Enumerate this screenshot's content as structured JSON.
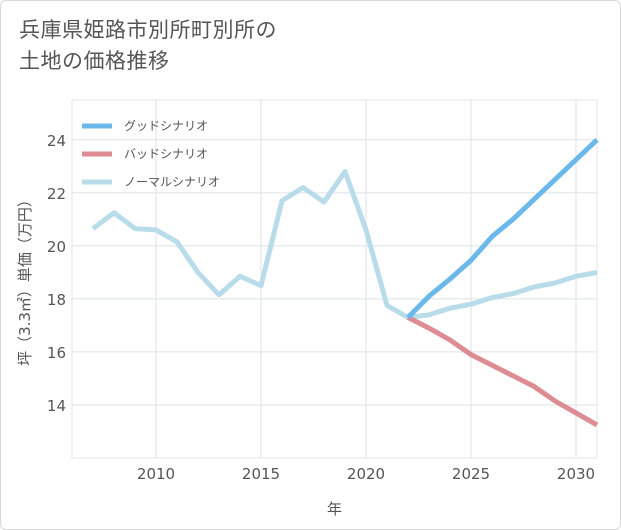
{
  "header": {
    "title_line1": "兵庫県姫路市別所町別所の",
    "title_line2": "土地の価格推移"
  },
  "chart_data": {
    "type": "line",
    "xlabel": "年",
    "ylabel": "坪（3.3㎡）単価（万円）",
    "xlim": [
      2006,
      2031
    ],
    "ylim": [
      12,
      25.5
    ],
    "xticks": [
      2010,
      2015,
      2020,
      2025,
      2030
    ],
    "yticks": [
      14,
      16,
      18,
      20,
      22,
      24
    ],
    "grid": true,
    "legend_position": "top-left",
    "series": [
      {
        "name": "グッドシナリオ",
        "color": "#6bb8ea",
        "x": [
          2022,
          2023,
          2024,
          2025,
          2026,
          2027,
          2028,
          2029,
          2030,
          2031
        ],
        "values": [
          17.3,
          18.1,
          18.75,
          19.45,
          20.35,
          21.0,
          21.75,
          22.5,
          23.25,
          24.0
        ]
      },
      {
        "name": "バッドシナリオ",
        "color": "#de8c93",
        "x": [
          2022,
          2023,
          2024,
          2025,
          2026,
          2027,
          2028,
          2029,
          2030,
          2031
        ],
        "values": [
          17.3,
          16.9,
          16.45,
          15.9,
          15.5,
          15.1,
          14.7,
          14.15,
          13.7,
          13.25
        ]
      },
      {
        "name": "ノーマルシナリオ",
        "color": "#b8dcea",
        "x": [
          2007,
          2008,
          2009,
          2010,
          2011,
          2012,
          2013,
          2014,
          2015,
          2016,
          2017,
          2018,
          2019,
          2020,
          2021,
          2022,
          2023,
          2024,
          2025,
          2026,
          2027,
          2028,
          2029,
          2030,
          2031
        ],
        "values": [
          20.65,
          21.25,
          20.65,
          20.6,
          20.15,
          19.0,
          18.15,
          18.85,
          18.5,
          21.7,
          22.2,
          21.65,
          22.8,
          20.6,
          17.75,
          17.3,
          17.4,
          17.65,
          17.8,
          18.05,
          18.2,
          18.45,
          18.6,
          18.85,
          19.0
        ]
      }
    ]
  }
}
